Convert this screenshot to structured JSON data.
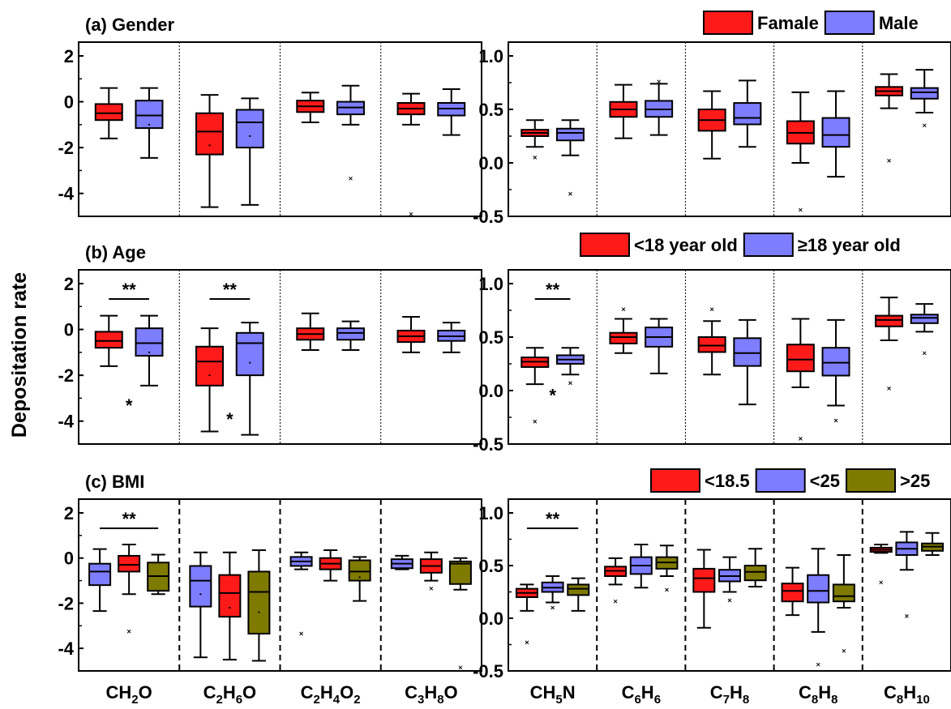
{
  "ylabel": "Depositation rate",
  "colors": {
    "red": "#ff1a1a",
    "blue": "#7d7dff",
    "olive": "#7f7a00"
  },
  "left_categories": [
    "CH2O",
    "C2H6O",
    "C2H4O2",
    "C3H8O"
  ],
  "right_categories": [
    "CH5N",
    "C6H6",
    "C7H8",
    "C8H8",
    "C8H10"
  ],
  "chart_data": [
    {
      "type": "box",
      "title": "(a) Gender",
      "ylim": [
        -5,
        2
      ],
      "yticks": [
        "2",
        "0",
        "-2",
        "-4"
      ],
      "categories_from": "left_categories",
      "series": [
        {
          "name": "",
          "color": "red",
          "boxes": [
            {
              "min": -1.6,
              "q1": -0.8,
              "median": -0.5,
              "q3": -0.1,
              "max": 0.6
            },
            {
              "min": -4.6,
              "q1": -2.3,
              "median": -1.3,
              "q3": -0.5,
              "max": 0.3,
              "mean": -1.9
            },
            {
              "min": -0.9,
              "q1": -0.45,
              "median": -0.2,
              "q3": 0.05,
              "max": 0.4
            },
            {
              "min": -1.0,
              "q1": -0.55,
              "median": -0.3,
              "q3": -0.05,
              "max": 0.35,
              "outliers": [
                -4.9
              ]
            }
          ]
        },
        {
          "name": "",
          "color": "blue",
          "boxes": [
            {
              "min": -2.45,
              "q1": -1.15,
              "median": -0.6,
              "q3": 0.05,
              "max": 0.6,
              "mean": -1.0
            },
            {
              "min": -4.5,
              "q1": -2.0,
              "median": -0.9,
              "q3": -0.35,
              "max": 0.15,
              "mean": -1.5
            },
            {
              "min": -1.0,
              "q1": -0.55,
              "median": -0.25,
              "q3": 0.0,
              "max": 0.7,
              "outliers": [
                -3.35
              ]
            },
            {
              "min": -1.45,
              "q1": -0.6,
              "median": -0.3,
              "q3": -0.05,
              "max": 0.55
            }
          ]
        }
      ]
    },
    {
      "type": "box",
      "title": "",
      "ylim": [
        -0.5,
        1.0
      ],
      "yticks": [
        "1.0",
        "0.5",
        "0.0",
        "-0.5"
      ],
      "categories_from": "right_categories",
      "legend": [
        "Famale",
        "Male"
      ],
      "series": [
        {
          "name": "Famale",
          "color": "red",
          "boxes": [
            {
              "min": 0.15,
              "q1": 0.25,
              "median": 0.28,
              "q3": 0.31,
              "max": 0.4,
              "outliers": [
                0.05
              ]
            },
            {
              "min": 0.23,
              "q1": 0.43,
              "median": 0.5,
              "q3": 0.57,
              "max": 0.73
            },
            {
              "min": 0.04,
              "q1": 0.3,
              "median": 0.4,
              "q3": 0.5,
              "max": 0.67
            },
            {
              "min": 0.0,
              "q1": 0.18,
              "median": 0.28,
              "q3": 0.39,
              "max": 0.66,
              "outliers": [
                -0.44
              ]
            },
            {
              "min": 0.51,
              "q1": 0.63,
              "median": 0.67,
              "q3": 0.71,
              "max": 0.83,
              "outliers": [
                0.02
              ]
            }
          ]
        },
        {
          "name": "Male",
          "color": "blue",
          "boxes": [
            {
              "min": 0.07,
              "q1": 0.21,
              "median": 0.28,
              "q3": 0.32,
              "max": 0.4,
              "outliers": [
                -0.29
              ]
            },
            {
              "min": 0.26,
              "q1": 0.43,
              "median": 0.5,
              "q3": 0.58,
              "max": 0.74,
              "outliers": [
                0.76
              ]
            },
            {
              "min": 0.15,
              "q1": 0.36,
              "median": 0.42,
              "q3": 0.56,
              "max": 0.77
            },
            {
              "min": -0.13,
              "q1": 0.15,
              "median": 0.26,
              "q3": 0.42,
              "max": 0.67
            },
            {
              "min": 0.47,
              "q1": 0.6,
              "median": 0.66,
              "q3": 0.7,
              "max": 0.87,
              "outliers": [
                0.35
              ]
            }
          ]
        }
      ]
    },
    {
      "type": "box",
      "title": "(b) Age",
      "ylim": [
        -5,
        2
      ],
      "yticks": [
        "2",
        "0",
        "-2",
        "-4"
      ],
      "categories_from": "left_categories",
      "brackets": [
        {
          "cat": 0,
          "label": "**"
        },
        {
          "cat": 1,
          "label": "**"
        }
      ],
      "stars": [
        {
          "cat": 0,
          "y": -3.3,
          "label": "*"
        },
        {
          "cat": 1,
          "y": -3.9,
          "label": "*"
        }
      ],
      "series": [
        {
          "name": "",
          "color": "red",
          "boxes": [
            {
              "min": -1.6,
              "q1": -0.8,
              "median": -0.5,
              "q3": -0.1,
              "max": 0.6
            },
            {
              "min": -4.45,
              "q1": -2.45,
              "median": -1.4,
              "q3": -0.75,
              "max": 0.05,
              "mean": -2.0
            },
            {
              "min": -0.9,
              "q1": -0.45,
              "median": -0.2,
              "q3": 0.05,
              "max": 0.7
            },
            {
              "min": -1.0,
              "q1": -0.55,
              "median": -0.3,
              "q3": -0.05,
              "max": 0.55
            }
          ]
        },
        {
          "name": "",
          "color": "blue",
          "boxes": [
            {
              "min": -2.45,
              "q1": -1.15,
              "median": -0.6,
              "q3": 0.05,
              "max": 0.6,
              "mean": -1.0
            },
            {
              "min": -4.6,
              "q1": -2.0,
              "median": -0.6,
              "q3": -0.15,
              "max": 0.3,
              "mean": -1.45
            },
            {
              "min": -0.9,
              "q1": -0.45,
              "median": -0.15,
              "q3": 0.05,
              "max": 0.35
            },
            {
              "min": -1.0,
              "q1": -0.5,
              "median": -0.3,
              "q3": -0.05,
              "max": 0.3
            }
          ]
        }
      ]
    },
    {
      "type": "box",
      "title": "",
      "ylim": [
        -0.5,
        1.0
      ],
      "yticks": [
        "1.0",
        "0.5",
        "0.0",
        "-0.5"
      ],
      "categories_from": "right_categories",
      "legend": [
        "<18 year old",
        "≥18  year old"
      ],
      "brackets": [
        {
          "cat": 0,
          "label": "**"
        }
      ],
      "stars": [
        {
          "cat": 0,
          "y": -0.04,
          "label": "*"
        }
      ],
      "series": [
        {
          "name": "<18 year old",
          "color": "red",
          "boxes": [
            {
              "min": 0.06,
              "q1": 0.22,
              "median": 0.27,
              "q3": 0.31,
              "max": 0.4,
              "outliers": [
                -0.29
              ]
            },
            {
              "min": 0.35,
              "q1": 0.44,
              "median": 0.5,
              "q3": 0.54,
              "max": 0.67,
              "outliers": [
                0.76
              ]
            },
            {
              "min": 0.15,
              "q1": 0.36,
              "median": 0.42,
              "q3": 0.5,
              "max": 0.65,
              "outliers": [
                0.76
              ]
            },
            {
              "min": 0.03,
              "q1": 0.18,
              "median": 0.29,
              "q3": 0.43,
              "max": 0.67,
              "outliers": [
                -0.45
              ]
            },
            {
              "min": 0.47,
              "q1": 0.6,
              "median": 0.66,
              "q3": 0.7,
              "max": 0.87,
              "outliers": [
                0.02
              ]
            }
          ]
        },
        {
          "name": "≥18  year old",
          "color": "blue",
          "boxes": [
            {
              "min": 0.15,
              "q1": 0.25,
              "median": 0.29,
              "q3": 0.33,
              "max": 0.4,
              "outliers": [
                0.07
              ]
            },
            {
              "min": 0.16,
              "q1": 0.41,
              "median": 0.5,
              "q3": 0.59,
              "max": 0.67
            },
            {
              "min": -0.13,
              "q1": 0.23,
              "median": 0.35,
              "q3": 0.49,
              "max": 0.66
            },
            {
              "min": -0.14,
              "q1": 0.14,
              "median": 0.26,
              "q3": 0.4,
              "max": 0.66,
              "outliers": [
                -0.28
              ]
            },
            {
              "min": 0.55,
              "q1": 0.63,
              "median": 0.68,
              "q3": 0.71,
              "max": 0.81,
              "outliers": [
                0.35
              ]
            }
          ]
        }
      ]
    },
    {
      "type": "box",
      "title": "(c) BMI",
      "ylim": [
        -5,
        2
      ],
      "yticks": [
        "2",
        "0",
        "-2",
        "-4"
      ],
      "categories_from": "left_categories",
      "brackets": [
        {
          "cat": 0,
          "label": "**"
        }
      ],
      "series": [
        {
          "name": "",
          "color": "blue",
          "boxes": [
            {
              "min": -2.35,
              "q1": -1.2,
              "median": -0.6,
              "q3": -0.25,
              "max": 0.4
            },
            {
              "min": -4.4,
              "q1": -2.15,
              "median": -1.0,
              "q3": -0.35,
              "max": 0.25,
              "mean": -1.6
            },
            {
              "min": -0.5,
              "q1": -0.35,
              "median": -0.15,
              "q3": 0.05,
              "max": 0.25,
              "outliers": [
                -3.35
              ]
            },
            {
              "min": -0.5,
              "q1": -0.45,
              "median": -0.25,
              "q3": -0.05,
              "max": 0.1
            }
          ]
        },
        {
          "name": "",
          "color": "red",
          "boxes": [
            {
              "min": -1.6,
              "q1": -0.6,
              "median": -0.3,
              "q3": 0.1,
              "max": 0.6,
              "outliers": [
                -3.25
              ]
            },
            {
              "min": -4.5,
              "q1": -2.6,
              "median": -1.55,
              "q3": -0.75,
              "max": 0.25,
              "mean": -2.2
            },
            {
              "min": -1.0,
              "q1": -0.5,
              "median": -0.25,
              "q3": 0.0,
              "max": 0.35
            },
            {
              "min": -1.0,
              "q1": -0.65,
              "median": -0.35,
              "q3": -0.05,
              "max": 0.25,
              "outliers": [
                -1.35
              ]
            }
          ]
        },
        {
          "name": "",
          "color": "olive",
          "boxes": [
            {
              "min": -1.6,
              "q1": -1.45,
              "median": -0.8,
              "q3": -0.2,
              "max": 0.15
            },
            {
              "min": -4.55,
              "q1": -3.35,
              "median": -1.5,
              "q3": -0.6,
              "max": 0.35,
              "mean": -2.4
            },
            {
              "min": -1.9,
              "q1": -1.0,
              "median": -0.6,
              "q3": -0.1,
              "max": 0.05,
              "mean": -0.85
            },
            {
              "min": -1.4,
              "q1": -1.15,
              "median": -0.25,
              "q3": -0.15,
              "max": 0.0,
              "outliers": [
                -4.85
              ]
            }
          ]
        }
      ]
    },
    {
      "type": "box",
      "title": "",
      "ylim": [
        -0.5,
        1.0
      ],
      "yticks": [
        "1.0",
        "0.5",
        "0.0",
        "-0.5"
      ],
      "categories_from": "right_categories",
      "legend": [
        "<18.5",
        "<25",
        ">25"
      ],
      "brackets": [
        {
          "cat": 0,
          "label": "**"
        }
      ],
      "series": [
        {
          "name": "<18.5",
          "color": "red",
          "boxes": [
            {
              "min": 0.07,
              "q1": 0.2,
              "median": 0.24,
              "q3": 0.28,
              "max": 0.32,
              "outliers": [
                -0.23
              ]
            },
            {
              "min": 0.32,
              "q1": 0.4,
              "median": 0.45,
              "q3": 0.49,
              "max": 0.57,
              "outliers": [
                0.16
              ]
            },
            {
              "min": -0.09,
              "q1": 0.25,
              "median": 0.38,
              "q3": 0.47,
              "max": 0.65
            },
            {
              "min": 0.03,
              "q1": 0.16,
              "median": 0.26,
              "q3": 0.33,
              "max": 0.48
            },
            {
              "min": 0.62,
              "q1": 0.63,
              "median": 0.65,
              "q3": 0.67,
              "max": 0.7,
              "outliers": [
                0.34
              ]
            }
          ]
        },
        {
          "name": "<25",
          "color": "blue",
          "boxes": [
            {
              "min": 0.15,
              "q1": 0.25,
              "median": 0.29,
              "q3": 0.34,
              "max": 0.4,
              "outliers": [
                0.1
              ]
            },
            {
              "min": 0.29,
              "q1": 0.42,
              "median": 0.5,
              "q3": 0.58,
              "max": 0.7
            },
            {
              "min": 0.25,
              "q1": 0.35,
              "median": 0.4,
              "q3": 0.46,
              "max": 0.58,
              "outliers": [
                0.17
              ]
            },
            {
              "min": -0.13,
              "q1": 0.15,
              "median": 0.26,
              "q3": 0.41,
              "max": 0.66,
              "outliers": [
                -0.44
              ]
            },
            {
              "min": 0.46,
              "q1": 0.6,
              "median": 0.66,
              "q3": 0.72,
              "max": 0.82,
              "outliers": [
                0.02
              ]
            }
          ]
        },
        {
          "name": ">25",
          "color": "olive",
          "boxes": [
            {
              "min": 0.07,
              "q1": 0.22,
              "median": 0.28,
              "q3": 0.32,
              "max": 0.38
            },
            {
              "min": 0.4,
              "q1": 0.47,
              "median": 0.53,
              "q3": 0.58,
              "max": 0.69,
              "outliers": [
                0.27
              ]
            },
            {
              "min": 0.3,
              "q1": 0.36,
              "median": 0.44,
              "q3": 0.5,
              "max": 0.66
            },
            {
              "min": 0.1,
              "q1": 0.16,
              "median": 0.21,
              "q3": 0.32,
              "max": 0.6,
              "outliers": [
                -0.31
              ]
            },
            {
              "min": 0.6,
              "q1": 0.64,
              "median": 0.68,
              "q3": 0.71,
              "max": 0.81
            }
          ]
        }
      ]
    }
  ]
}
